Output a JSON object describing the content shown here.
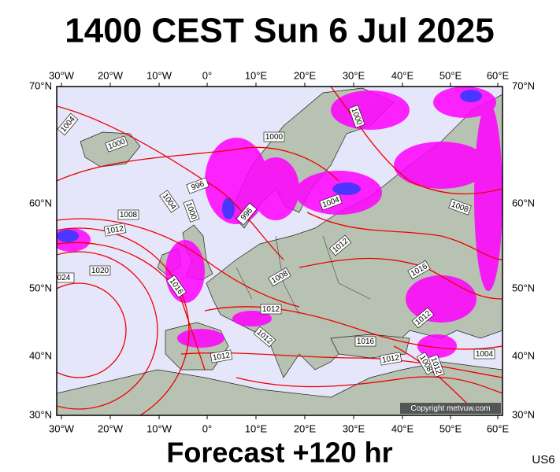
{
  "header": {
    "title": "1400 CEST Sun 6 Jul 2025"
  },
  "footer": {
    "forecast": "Forecast +120 hr",
    "code": "US6"
  },
  "map": {
    "lon_labels": [
      "30°W",
      "20°W",
      "10°W",
      "0°",
      "10°E",
      "20°E",
      "30°E",
      "40°E",
      "50°E",
      "60°E"
    ],
    "lat_labels": [
      "70°N",
      "60°N",
      "50°N",
      "40°N",
      "30°N"
    ],
    "isobar_labels": [
      "1004",
      "1000",
      "1000",
      "1000",
      "996",
      "1004",
      "1000",
      "996",
      "1008",
      "1012",
      "1004",
      "1008",
      "1012",
      "1020",
      "024",
      "1016",
      "1008",
      "1016",
      "1012",
      "1012",
      "1012",
      "1016",
      "1012",
      "1012",
      "1008",
      "1012",
      "1004"
    ],
    "copyright": "Copyright metvuw.com"
  }
}
